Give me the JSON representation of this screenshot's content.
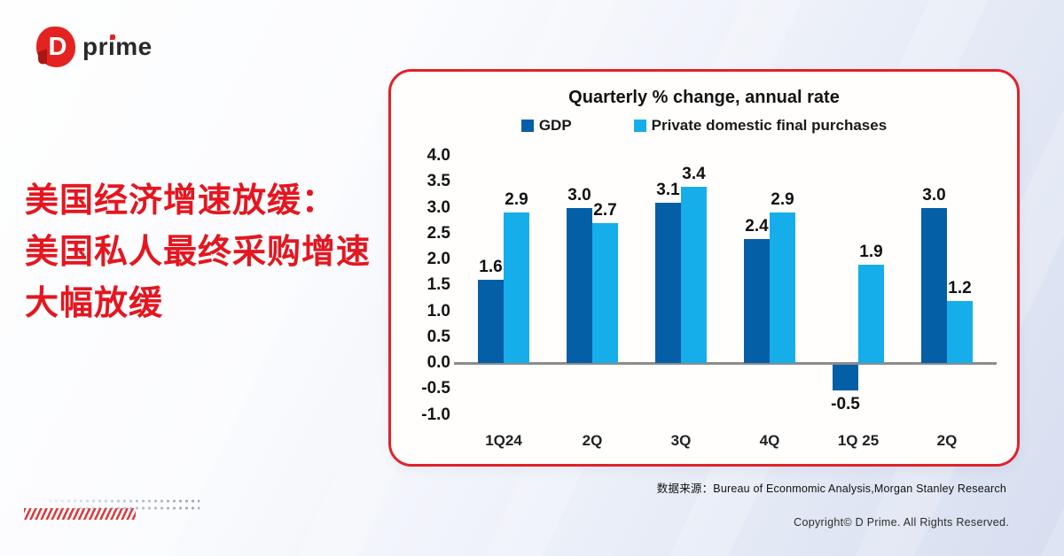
{
  "logo": {
    "mark_letter": "D",
    "text": "prime"
  },
  "headline": {
    "lines": [
      "美国经济增速放缓：",
      "美国私人最终采购增速",
      "大幅放缓"
    ]
  },
  "chart_data": {
    "type": "bar",
    "title": "Quarterly % change, annual rate",
    "categories": [
      "1Q24",
      "2Q",
      "3Q",
      "4Q",
      "1Q 25",
      "2Q"
    ],
    "series": [
      {
        "name": "GDP",
        "color": "#045fa6",
        "values": [
          1.6,
          3.0,
          3.1,
          2.4,
          -0.5,
          3.0
        ]
      },
      {
        "name": "Private domestic final purchases",
        "color": "#16aeea",
        "values": [
          2.9,
          2.7,
          3.4,
          2.9,
          1.9,
          1.2
        ]
      }
    ],
    "y_ticks": [
      4.0,
      3.5,
      3.0,
      2.5,
      2.0,
      1.5,
      1.0,
      0.5,
      0.0,
      -0.5,
      -1.0
    ],
    "ylim": [
      -1.0,
      4.0
    ],
    "grid": false,
    "legend_position": "top",
    "xlabel": "",
    "ylabel": ""
  },
  "source_note": "数据来源：Bureau of Econmomic Analysis,Morgan Stanley Research",
  "copyright": "Copyright© D Prime. All Rights Reserved.",
  "colors": {
    "accent_red": "#e0222a",
    "headline_red": "#e5161f",
    "gdp_blue": "#045fa6",
    "pdfp_blue": "#16aeea",
    "axis_gray": "#8c8c8c"
  }
}
